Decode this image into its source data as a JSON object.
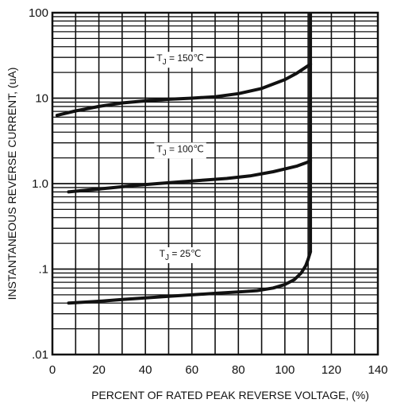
{
  "chart_data": {
    "type": "line",
    "title": "",
    "xlabel": "PERCENT OF RATED PEAK REVERSE VOLTAGE, (%)",
    "ylabel": "INSTANTANEOUS REVERSE CURRENT, (uA)",
    "xlim": [
      0,
      140
    ],
    "ylim": [
      0.01,
      100
    ],
    "x_scale": "linear",
    "y_scale": "log",
    "grid": true,
    "x_ticks": [
      0,
      20,
      40,
      60,
      80,
      100,
      120,
      140
    ],
    "x_tick_labels": [
      "0",
      "20",
      "40",
      "60",
      "80",
      "100",
      "120",
      "140"
    ],
    "y_ticks": [
      0.01,
      0.1,
      1,
      10,
      100
    ],
    "y_tick_labels": [
      ".01",
      ".1",
      "1.0",
      "10",
      "100"
    ],
    "series": [
      {
        "name": "TJ = 150℃",
        "label_main": "T",
        "label_sub": "J",
        "label_rest": " = 150℃",
        "label_anchor": [
          55,
          30
        ],
        "x": [
          2,
          10,
          20,
          30,
          40,
          50,
          60,
          70,
          80,
          90,
          100,
          105,
          109,
          111
        ],
        "y": [
          6.3,
          7.1,
          8.0,
          8.8,
          9.3,
          9.7,
          10,
          10.4,
          11.3,
          13,
          16.5,
          19.5,
          23,
          25
        ]
      },
      {
        "name": "TJ = 100℃",
        "label_main": "T",
        "label_sub": "J",
        "label_rest": " = 100℃",
        "label_anchor": [
          55,
          2.6
        ],
        "x": [
          7,
          15,
          25,
          35,
          45,
          55,
          65,
          75,
          85,
          95,
          105,
          109,
          111
        ],
        "y": [
          0.8,
          0.84,
          0.89,
          0.95,
          1.0,
          1.05,
          1.1,
          1.15,
          1.23,
          1.38,
          1.6,
          1.75,
          1.85
        ]
      },
      {
        "name": "TJ = 25℃",
        "label_main": "T",
        "label_sub": "J",
        "label_rest": " = 25℃",
        "label_anchor": [
          55,
          0.155
        ],
        "x": [
          7,
          20,
          30,
          40,
          50,
          60,
          70,
          80,
          88,
          95,
          100,
          104,
          107,
          109,
          110,
          111
        ],
        "y": [
          0.04,
          0.042,
          0.044,
          0.046,
          0.048,
          0.05,
          0.052,
          0.054,
          0.056,
          0.06,
          0.066,
          0.075,
          0.09,
          0.11,
          0.13,
          0.16
        ]
      }
    ],
    "vertical_rise_x": 111,
    "color": "#111111"
  }
}
